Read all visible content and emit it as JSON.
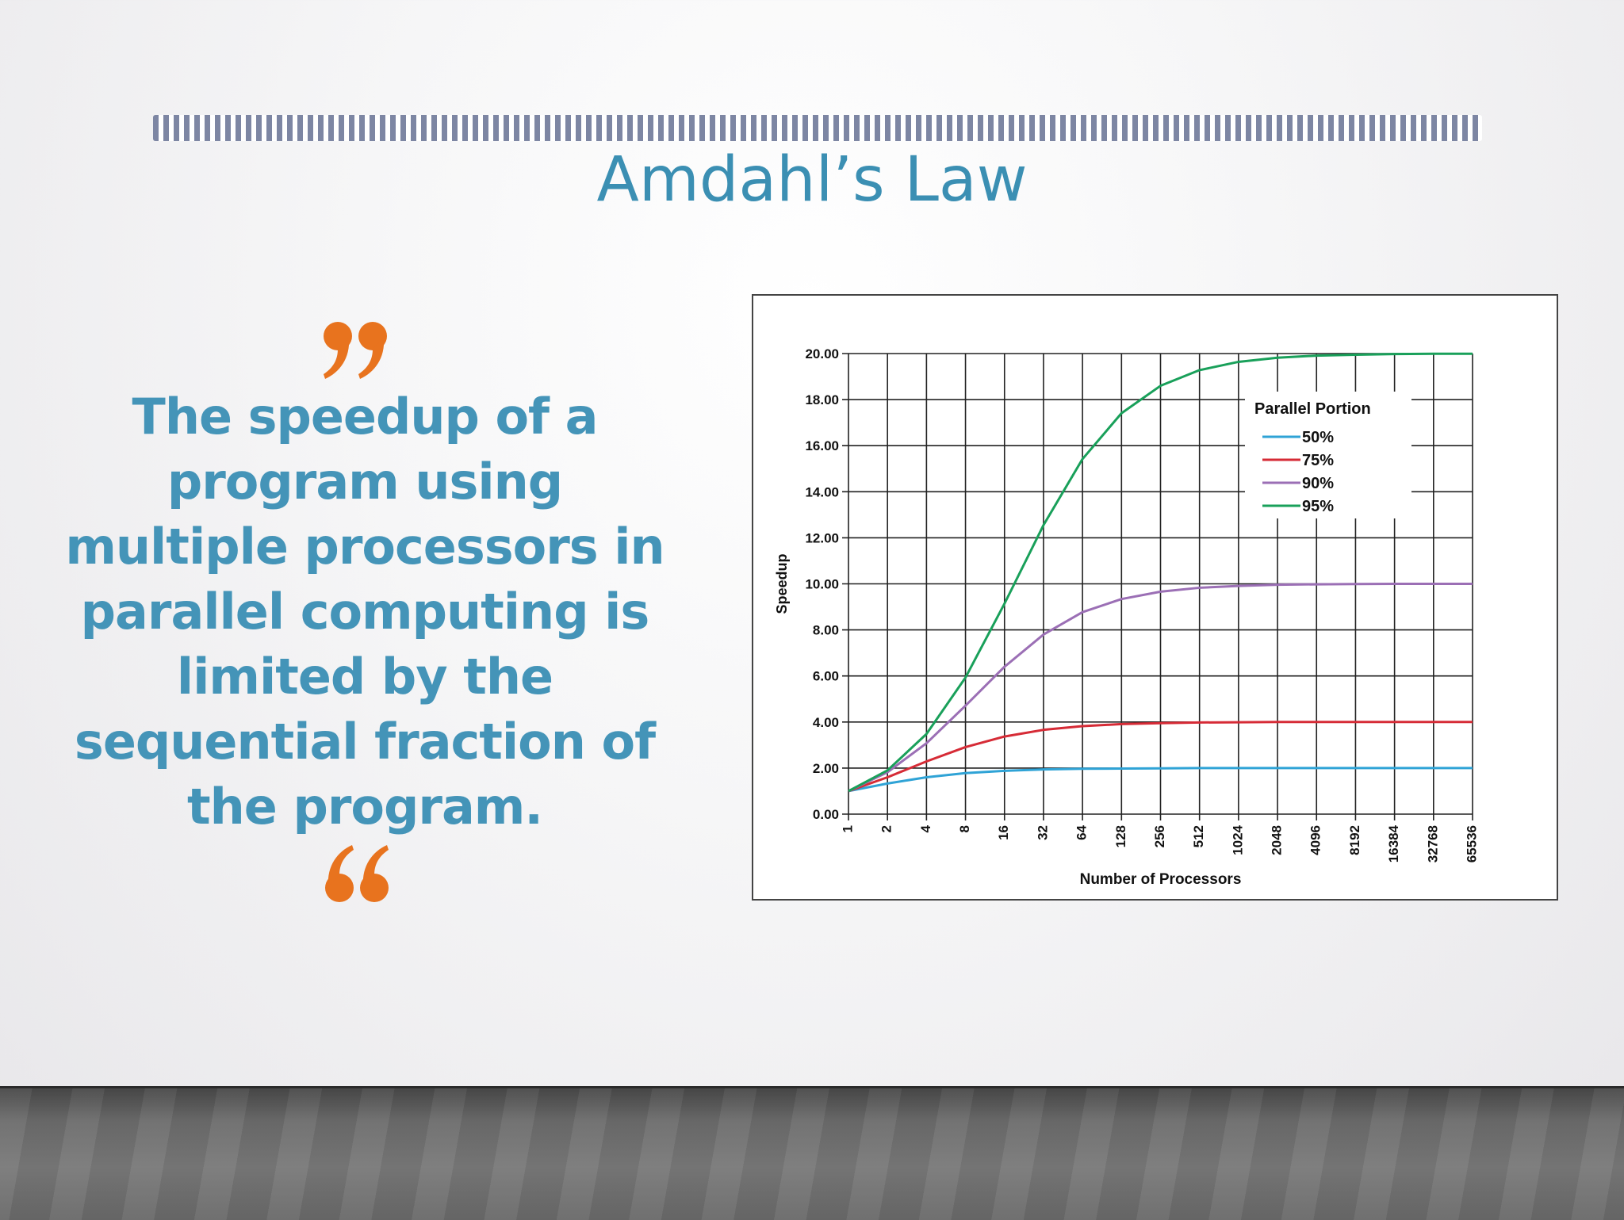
{
  "slide": {
    "title": "Amdahl’s Law",
    "quote": "The speedup of a program using multiple processors in parallel computing is limited by the sequential fraction of the program.",
    "accent_color": "#e8731e",
    "text_color": "#4494b8"
  },
  "chart_data": {
    "type": "line",
    "xlabel": "Number of Processors",
    "ylabel": "Speedup",
    "x": [
      "1",
      "2",
      "4",
      "8",
      "16",
      "32",
      "64",
      "128",
      "256",
      "512",
      "1024",
      "2048",
      "4096",
      "8192",
      "16384",
      "32768",
      "65536"
    ],
    "yticks": [
      "0.00",
      "2.00",
      "4.00",
      "6.00",
      "8.00",
      "10.00",
      "12.00",
      "14.00",
      "16.00",
      "18.00",
      "20.00"
    ],
    "ylim": [
      0,
      20
    ],
    "grid": true,
    "legend_title": "Parallel Portion",
    "legend_position": "top-right",
    "series": [
      {
        "name": "50%",
        "color": "#2fa3d6",
        "values": [
          1.0,
          1.33,
          1.6,
          1.78,
          1.88,
          1.94,
          1.97,
          1.98,
          1.99,
          2.0,
          2.0,
          2.0,
          2.0,
          2.0,
          2.0,
          2.0,
          2.0
        ]
      },
      {
        "name": "75%",
        "color": "#d62b36",
        "values": [
          1.0,
          1.6,
          2.29,
          2.91,
          3.37,
          3.66,
          3.82,
          3.91,
          3.95,
          3.98,
          3.99,
          4.0,
          4.0,
          4.0,
          4.0,
          4.0,
          4.0
        ]
      },
      {
        "name": "90%",
        "color": "#9b6fb5",
        "values": [
          1.0,
          1.82,
          3.08,
          4.71,
          6.4,
          7.8,
          8.77,
          9.34,
          9.66,
          9.83,
          9.91,
          9.96,
          9.98,
          9.99,
          10.0,
          10.0,
          10.0
        ]
      },
      {
        "name": "95%",
        "color": "#19a05a",
        "values": [
          1.0,
          1.9,
          3.48,
          5.93,
          9.14,
          12.55,
          15.42,
          17.41,
          18.6,
          19.28,
          19.64,
          19.82,
          19.91,
          19.95,
          19.98,
          19.99,
          19.99
        ]
      }
    ]
  }
}
